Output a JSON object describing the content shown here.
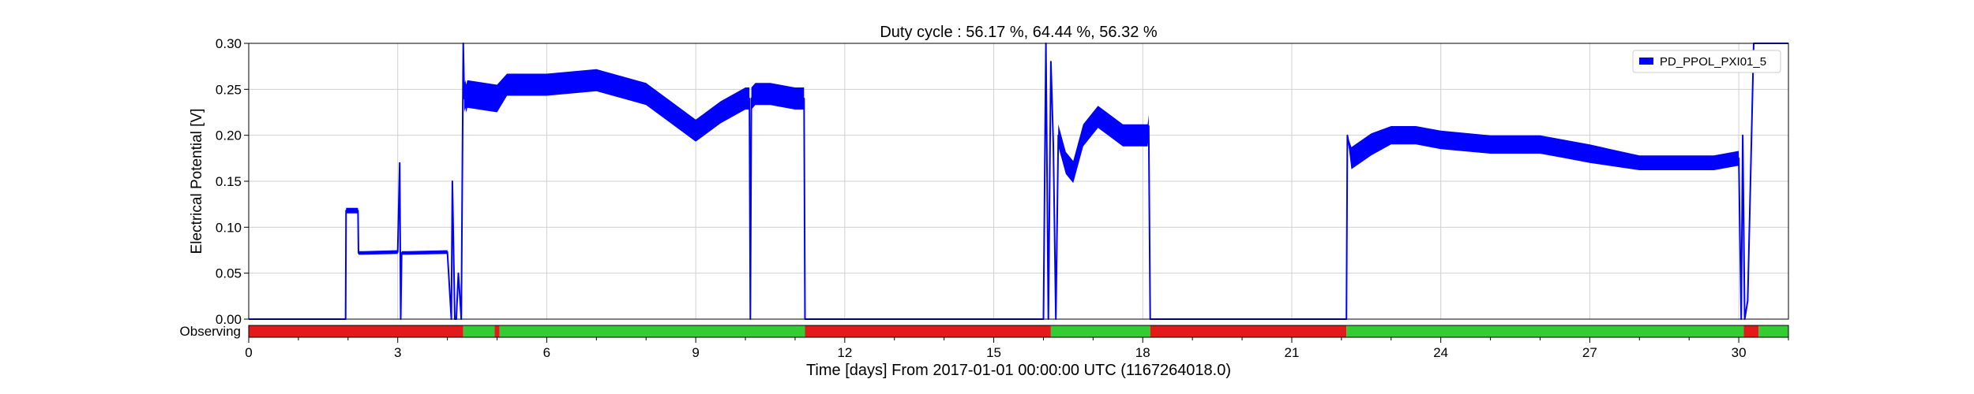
{
  "chart_data": {
    "type": "line",
    "title": "Duty cycle : 56.17 %, 64.44 %, 56.32 %",
    "xlabel": "Time [days] From 2017-01-01 00:00:00 UTC (1167264018.0)",
    "ylabel": "Electrical Potential [V]",
    "xlim": [
      0,
      31
    ],
    "ylim": [
      0,
      0.3
    ],
    "x_ticks": [
      0,
      3,
      6,
      9,
      12,
      15,
      18,
      21,
      24,
      27,
      30
    ],
    "x_tick_labels": [
      "0",
      "3",
      "6",
      "9",
      "12",
      "15",
      "18",
      "21",
      "24",
      "27",
      "30"
    ],
    "y_ticks": [
      0,
      0.05,
      0.1,
      0.15,
      0.2,
      0.25,
      0.3
    ],
    "y_tick_labels": [
      "0.00",
      "0.05",
      "0.10",
      "0.15",
      "0.20",
      "0.25",
      "0.30"
    ],
    "grid": true,
    "legend_position": "top-right",
    "series": [
      {
        "name": "PD_PPOL_PXI01_5",
        "color": "#0000ff",
        "x": [
          0,
          1.95,
          1.96,
          2.2,
          2.21,
          2.3,
          3.0,
          3.04,
          3.06,
          3.08,
          3.1,
          3.2,
          4.0,
          4.08,
          4.1,
          4.15,
          4.18,
          4.22,
          4.28,
          4.32,
          4.34,
          4.36,
          4.38,
          4.4,
          5.0,
          5.2,
          6.0,
          7.0,
          8.0,
          8.5,
          9.0,
          9.5,
          10.0,
          10.08,
          10.1,
          10.12,
          10.2,
          10.5,
          11.0,
          11.18,
          11.2,
          16.0,
          16.05,
          16.1,
          16.15,
          16.2,
          16.25,
          16.3,
          16.45,
          16.6,
          16.8,
          17.1,
          17.6,
          18.1,
          18.12,
          18.15,
          22.1,
          22.12,
          22.2,
          22.6,
          23.0,
          23.5,
          24.0,
          25.0,
          26.0,
          26.5,
          27.0,
          28.0,
          29.0,
          29.5,
          30.0,
          30.05,
          30.08,
          30.12,
          30.18,
          30.3,
          30.4,
          31.0
        ],
        "y_center": [
          0,
          0,
          0.118,
          0.118,
          0.072,
          0.072,
          0.073,
          0.17,
          0.0,
          0.072,
          0.072,
          0.072,
          0.073,
          0.0,
          0.15,
          0.0,
          0.0,
          0.05,
          0.0,
          0.3,
          0.24,
          0.245,
          0.24,
          0.245,
          0.24,
          0.255,
          0.255,
          0.26,
          0.245,
          0.225,
          0.205,
          0.225,
          0.24,
          0.24,
          0.0,
          0.24,
          0.245,
          0.245,
          0.24,
          0.24,
          0.0,
          0.0,
          0.3,
          0.0,
          0.28,
          0.19,
          0.0,
          0.2,
          0.17,
          0.16,
          0.2,
          0.22,
          0.2,
          0.2,
          0.21,
          0.0,
          0.0,
          0.2,
          0.175,
          0.19,
          0.2,
          0.2,
          0.195,
          0.19,
          0.19,
          0.185,
          0.18,
          0.17,
          0.17,
          0.17,
          0.175,
          0.0,
          0.2,
          0.0,
          0.02,
          0.3,
          0.3,
          0.3
        ],
        "noise": [
          0,
          0,
          0.003,
          0.003,
          0.002,
          0.002,
          0.002,
          0,
          0,
          0.002,
          0.002,
          0.002,
          0.002,
          0,
          0,
          0,
          0,
          0,
          0,
          0,
          0.015,
          0.015,
          0.015,
          0.015,
          0.015,
          0.012,
          0.012,
          0.012,
          0.012,
          0.012,
          0.012,
          0.012,
          0.012,
          0.012,
          0,
          0.012,
          0.012,
          0.012,
          0.012,
          0.012,
          0,
          0,
          0,
          0,
          0,
          0.012,
          0,
          0.012,
          0.012,
          0.012,
          0.012,
          0.012,
          0.012,
          0.012,
          0.012,
          0,
          0,
          0,
          0.012,
          0.012,
          0.01,
          0.01,
          0.01,
          0.01,
          0.01,
          0.01,
          0.01,
          0.008,
          0.008,
          0.008,
          0.008,
          0,
          0,
          0,
          0,
          0,
          0,
          0
        ]
      }
    ],
    "state_bar": {
      "label": "Observing",
      "on_color": "#33cc33",
      "off_color": "#e21a1a",
      "segments": [
        {
          "start": 0,
          "end": 4.32,
          "state": "off"
        },
        {
          "start": 4.32,
          "end": 4.95,
          "state": "on"
        },
        {
          "start": 4.95,
          "end": 5.05,
          "state": "off"
        },
        {
          "start": 5.05,
          "end": 11.2,
          "state": "on"
        },
        {
          "start": 11.2,
          "end": 16.15,
          "state": "off"
        },
        {
          "start": 16.15,
          "end": 18.15,
          "state": "on"
        },
        {
          "start": 18.15,
          "end": 22.1,
          "state": "off"
        },
        {
          "start": 22.1,
          "end": 30.1,
          "state": "on"
        },
        {
          "start": 30.1,
          "end": 30.4,
          "state": "off"
        },
        {
          "start": 30.4,
          "end": 31.0,
          "state": "on"
        }
      ]
    }
  }
}
